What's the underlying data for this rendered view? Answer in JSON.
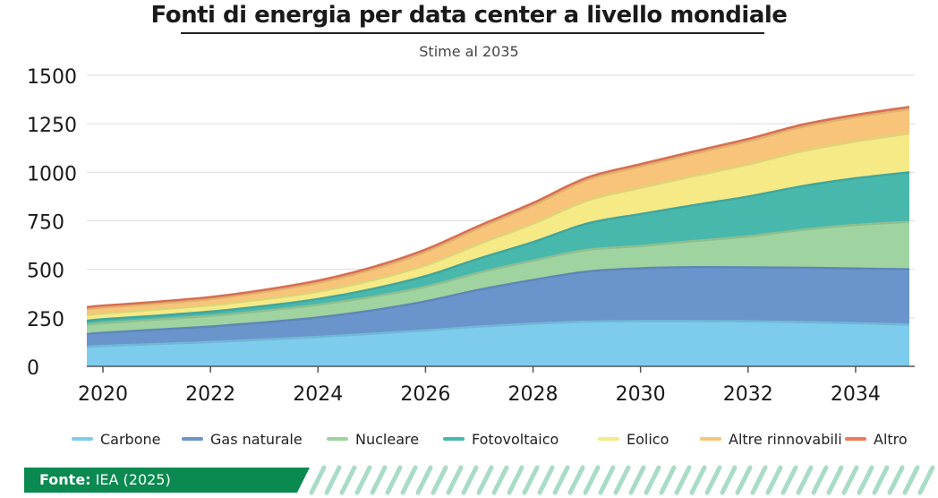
{
  "chart_data": {
    "type": "area",
    "stacked": true,
    "title": "Fonti di energia per data center a livello mondiale",
    "subtitle": "Stime al 2035",
    "xlabel": "",
    "ylabel": "",
    "xlim": [
      2019.7,
      2035.1
    ],
    "ylim": [
      0,
      1500
    ],
    "yticks": [
      0,
      250,
      500,
      750,
      1000,
      1250,
      1500
    ],
    "xticks": [
      2020,
      2022,
      2024,
      2026,
      2028,
      2030,
      2032,
      2034
    ],
    "grid": true,
    "legend_position": "bottom",
    "x": [
      2019.7,
      2020,
      2021,
      2022,
      2023,
      2024,
      2025,
      2026,
      2027,
      2028,
      2029,
      2030,
      2031,
      2032,
      2033,
      2034,
      2035
    ],
    "series": [
      {
        "name": "Carbone",
        "color": "#7dccee",
        "values": [
          100,
          105,
          115,
          125,
          138,
          152,
          168,
          185,
          205,
          220,
          230,
          233,
          233,
          232,
          228,
          222,
          215
        ]
      },
      {
        "name": "Gas naturale",
        "color": "#6a95cc",
        "values": [
          65,
          68,
          74,
          80,
          88,
          100,
          120,
          150,
          190,
          225,
          258,
          272,
          278,
          278,
          280,
          282,
          285
        ]
      },
      {
        "name": "Nucleare",
        "color": "#9fd39f",
        "values": [
          50,
          50,
          52,
          55,
          60,
          65,
          70,
          75,
          88,
          100,
          112,
          115,
          135,
          160,
          195,
          225,
          245
        ]
      },
      {
        "name": "Fotovoltaico",
        "color": "#48b8ad",
        "values": [
          20,
          20,
          20,
          22,
          25,
          30,
          40,
          55,
          73,
          95,
          135,
          165,
          185,
          205,
          225,
          240,
          255
        ]
      },
      {
        "name": "Eolico",
        "color": "#f6ea86",
        "values": [
          30,
          30,
          32,
          33,
          35,
          38,
          45,
          55,
          75,
          95,
          118,
          135,
          150,
          165,
          180,
          190,
          200
        ]
      },
      {
        "name": "Altre rinnovabili",
        "color": "#f8c47a",
        "values": [
          30,
          30,
          30,
          32,
          38,
          45,
          55,
          70,
          82,
          95,
          107,
          110,
          115,
          120,
          125,
          125,
          125
        ]
      },
      {
        "name": "Altro",
        "color": "#f07a5a",
        "values": [
          10,
          10,
          10,
          10,
          10,
          12,
          12,
          12,
          12,
          12,
          12,
          12,
          12,
          12,
          12,
          12,
          12
        ]
      }
    ]
  },
  "source": {
    "label": "Fonte:",
    "text": "IEA (2025)"
  }
}
